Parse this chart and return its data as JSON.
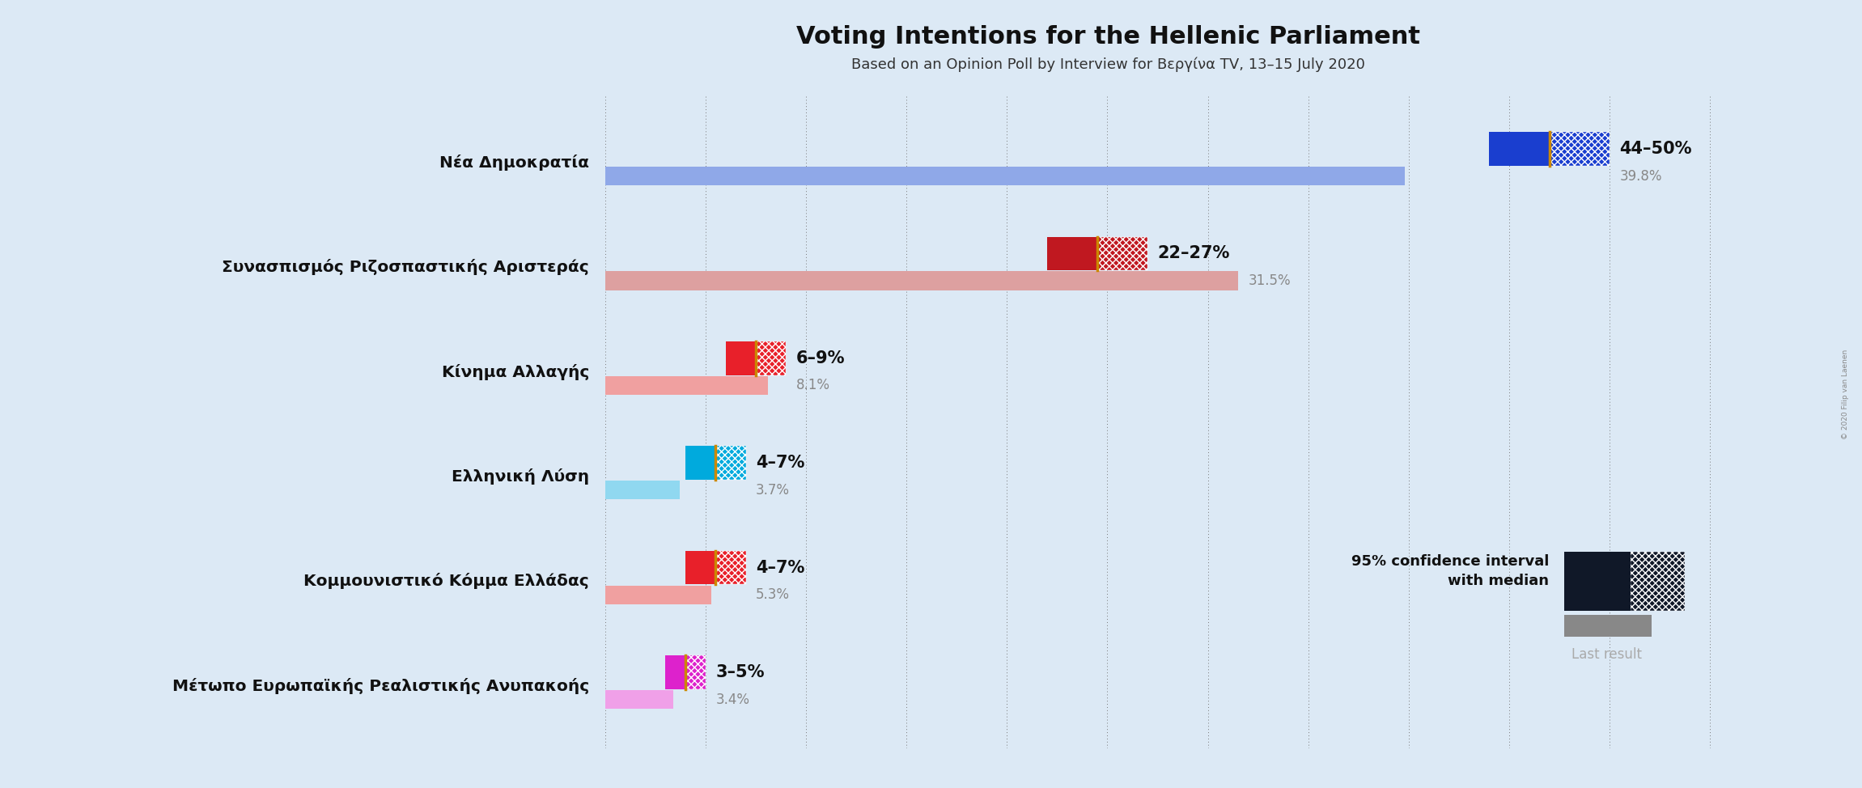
{
  "title": "Voting Intentions for the Hellenic Parliament",
  "subtitle": "Based on an Opinion Poll by Interview for Βεργίνα TV, 13–15 July 2020",
  "bg": "#dce9f5",
  "parties": [
    {
      "name": "Νέα Δημοκρατία",
      "ci_low": 44,
      "ci_high": 50,
      "median": 47,
      "last": 39.8,
      "color": "#1a3ecf",
      "light": "#8fa8e8",
      "ci_label": "44–50%",
      "last_label": "39.8%"
    },
    {
      "name": "Συνασπισμός Ριζοσπαστικής Αριστεράς",
      "ci_low": 22,
      "ci_high": 27,
      "median": 24.5,
      "last": 31.5,
      "color": "#c01820",
      "light": "#dda0a0",
      "ci_label": "22–27%",
      "last_label": "31.5%"
    },
    {
      "name": "Κίνημα Αλλαγής",
      "ci_low": 6,
      "ci_high": 9,
      "median": 7.5,
      "last": 8.1,
      "color": "#e8202a",
      "light": "#f0a0a0",
      "ci_label": "6–9%",
      "last_label": "8.1%"
    },
    {
      "name": "Ελληνική Λύση",
      "ci_low": 4,
      "ci_high": 7,
      "median": 5.5,
      "last": 3.7,
      "color": "#00aadd",
      "light": "#90d8f0",
      "ci_label": "4–7%",
      "last_label": "3.7%"
    },
    {
      "name": "Κομμουνιστικό Κόμμα Ελλάδας",
      "ci_low": 4,
      "ci_high": 7,
      "median": 5.5,
      "last": 5.3,
      "color": "#e8202a",
      "light": "#f0a0a0",
      "ci_label": "4–7%",
      "last_label": "5.3%"
    },
    {
      "name": "Μέτωπο Ευρωπαϊκής Ρεαλιστικής Ανυπακοής",
      "ci_low": 3,
      "ci_high": 5,
      "median": 4,
      "last": 3.4,
      "color": "#dd22cc",
      "light": "#f0a0e8",
      "ci_label": "3–5%",
      "last_label": "3.4%"
    }
  ],
  "xlim": [
    0,
    57
  ],
  "grid_ticks": [
    0,
    5,
    10,
    15,
    20,
    25,
    30,
    35,
    40,
    45,
    50,
    55
  ],
  "median_color": "#cc8800",
  "leg1": "95% confidence interval",
  "leg2": "with median",
  "leg3": "Last result",
  "copyright": "© 2020 Filip van Laenen"
}
